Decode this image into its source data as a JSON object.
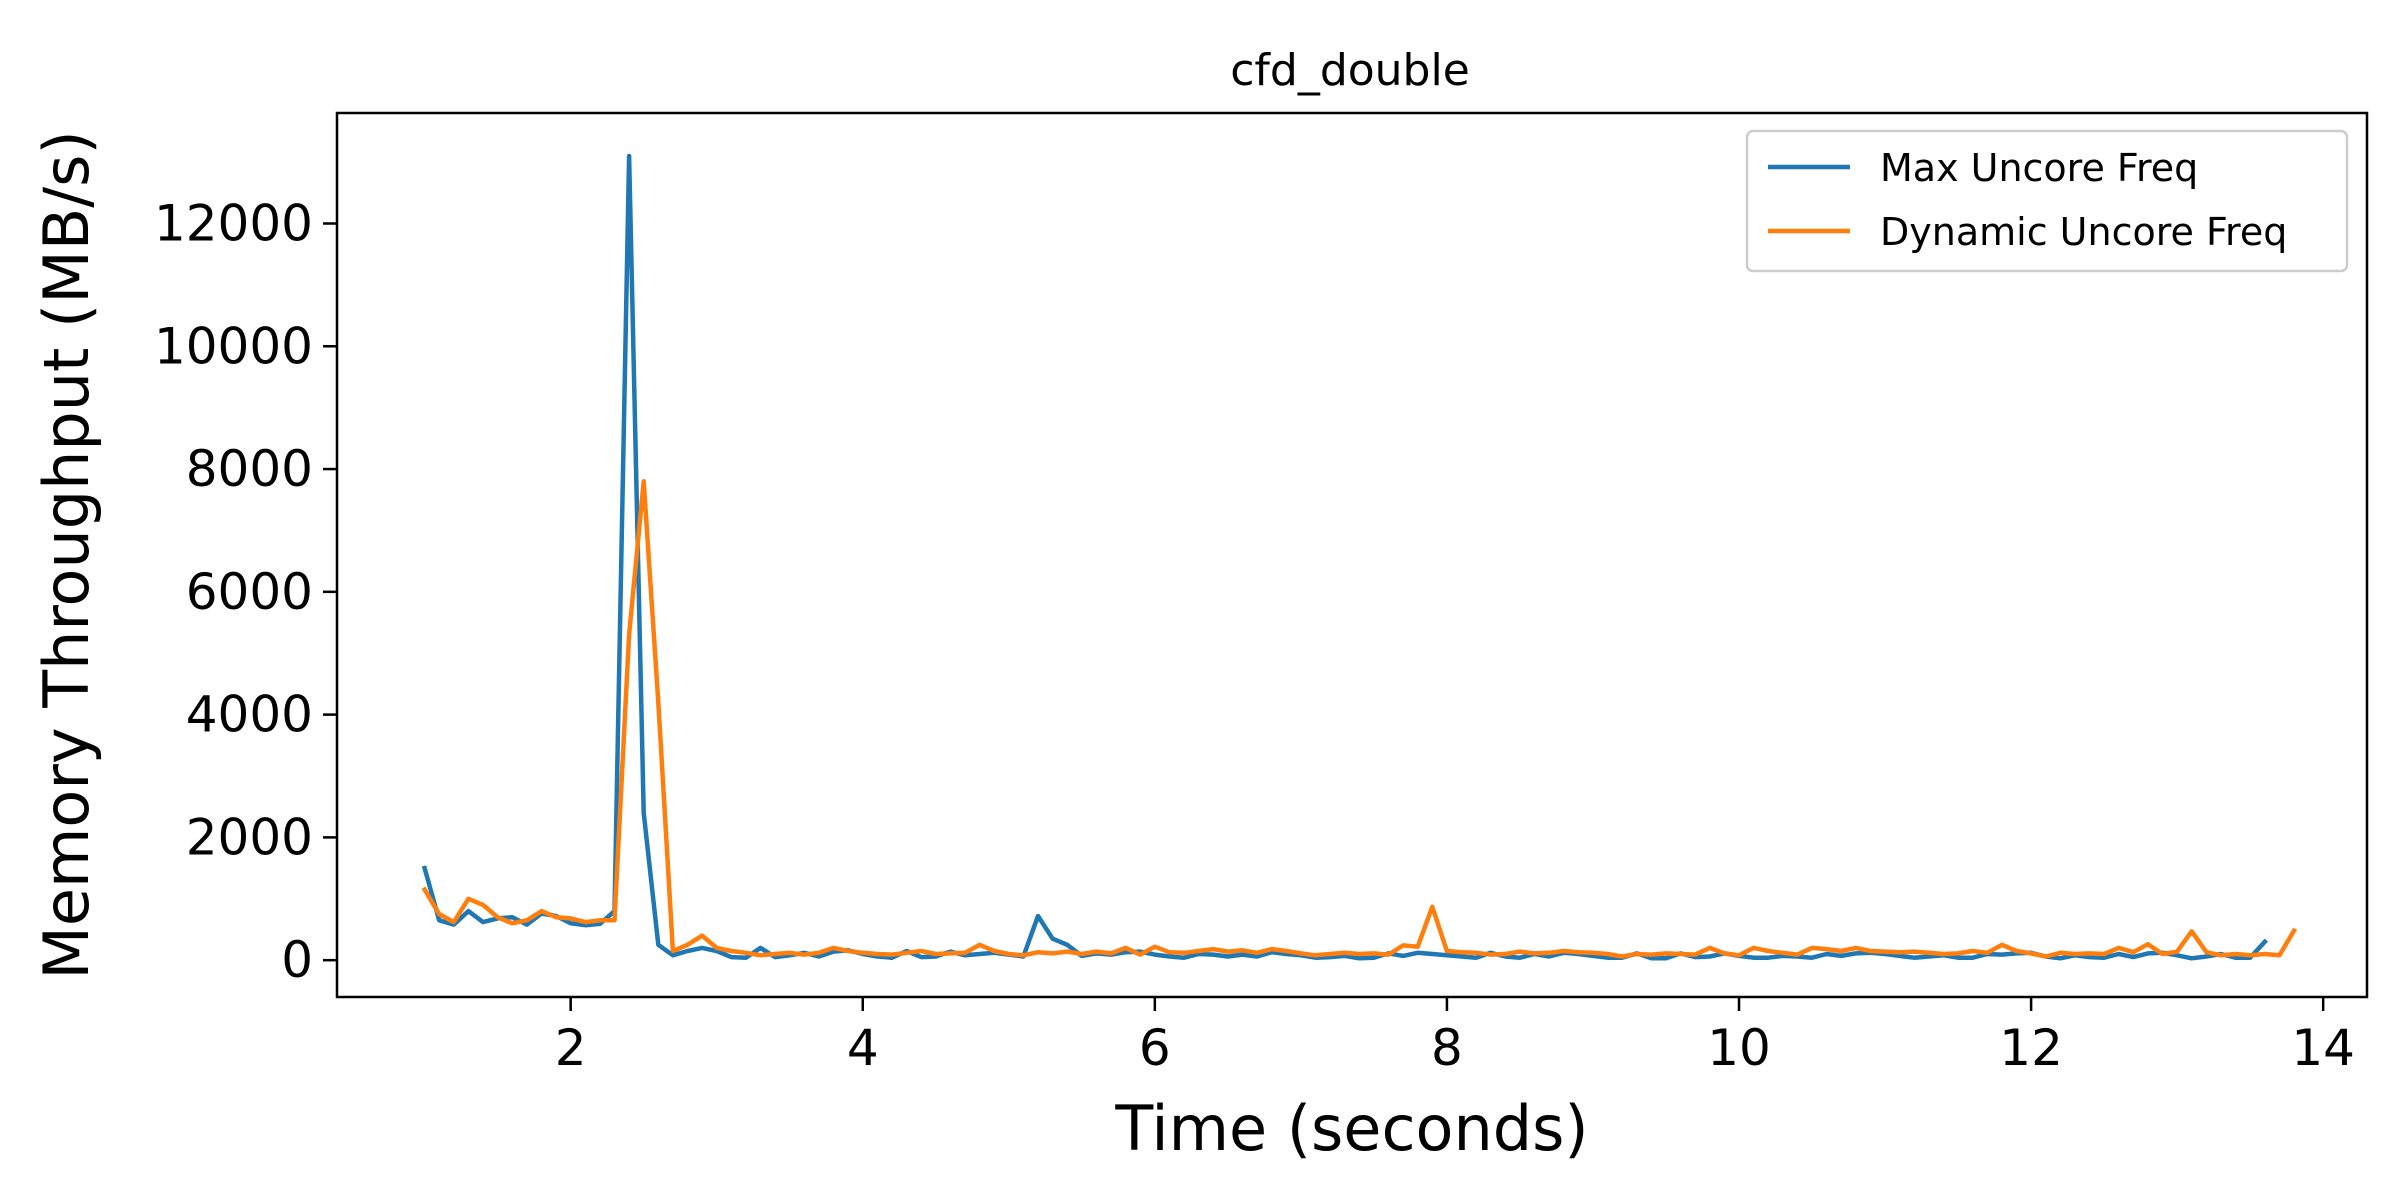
{
  "chart_data": {
    "type": "line",
    "title": "cfd_double",
    "xlabel": "Time (seconds)",
    "ylabel": "Memory Throughput (MB/s)",
    "xlim": [
      0.4,
      14.3
    ],
    "ylim": [
      -600,
      13800
    ],
    "xticks": [
      2,
      4,
      6,
      8,
      10,
      12,
      14
    ],
    "yticks": [
      0,
      2000,
      4000,
      6000,
      8000,
      10000,
      12000
    ],
    "grid": false,
    "legend_position": "top-right",
    "series": [
      {
        "name": "Max Uncore Freq",
        "color": "#1f77b4",
        "x": [
          1.0,
          1.1,
          1.2,
          1.3,
          1.4,
          1.5,
          1.6,
          1.7,
          1.8,
          1.9,
          2.0,
          2.1,
          2.2,
          2.3,
          2.4,
          2.5,
          2.6,
          2.7,
          2.8,
          2.9,
          3.0,
          3.1,
          3.2,
          3.3,
          3.4,
          3.5,
          3.6,
          3.7,
          3.8,
          3.9,
          4.0,
          4.1,
          4.2,
          4.3,
          4.4,
          4.5,
          4.6,
          4.7,
          4.8,
          4.9,
          5.0,
          5.1,
          5.2,
          5.3,
          5.4,
          5.5,
          5.6,
          5.7,
          5.8,
          5.9,
          6.0,
          6.1,
          6.2,
          6.3,
          6.4,
          6.5,
          6.6,
          6.7,
          6.8,
          6.9,
          7.0,
          7.1,
          7.2,
          7.3,
          7.4,
          7.5,
          7.6,
          7.7,
          7.8,
          7.9,
          8.0,
          8.1,
          8.2,
          8.3,
          8.4,
          8.5,
          8.6,
          8.7,
          8.8,
          8.9,
          9.0,
          9.1,
          9.2,
          9.3,
          9.4,
          9.5,
          9.6,
          9.7,
          9.8,
          9.9,
          10.0,
          10.1,
          10.2,
          10.3,
          10.4,
          10.5,
          10.6,
          10.7,
          10.8,
          10.9,
          11.0,
          11.1,
          11.2,
          11.3,
          11.4,
          11.5,
          11.6,
          11.7,
          11.8,
          11.9,
          12.0,
          12.1,
          12.2,
          12.3,
          12.4,
          12.5,
          12.6,
          12.7,
          12.8,
          12.9,
          13.0,
          13.1,
          13.2,
          13.3,
          13.4,
          13.5,
          13.6
        ],
        "y": [
          1500,
          650,
          580,
          800,
          620,
          680,
          700,
          580,
          760,
          720,
          600,
          570,
          590,
          800,
          13100,
          2400,
          250,
          80,
          150,
          200,
          150,
          50,
          40,
          200,
          50,
          80,
          120,
          60,
          140,
          160,
          100,
          60,
          40,
          150,
          50,
          60,
          140,
          80,
          100,
          120,
          90,
          60,
          720,
          350,
          250,
          70,
          110,
          90,
          130,
          140,
          90,
          60,
          40,
          100,
          90,
          60,
          90,
          60,
          130,
          100,
          80,
          40,
          50,
          70,
          30,
          40,
          110,
          70,
          120,
          100,
          80,
          60,
          40,
          120,
          60,
          40,
          100,
          60,
          120,
          100,
          70,
          40,
          40,
          110,
          30,
          30,
          110,
          50,
          60,
          110,
          70,
          40,
          40,
          70,
          60,
          40,
          100,
          70,
          110,
          120,
          100,
          70,
          40,
          60,
          80,
          40,
          40,
          100,
          90,
          110,
          120,
          60,
          30,
          80,
          50,
          40,
          100,
          50,
          110,
          120,
          80,
          30,
          60,
          100,
          40,
          40,
          300
        ]
      },
      {
        "name": "Dynamic Uncore Freq",
        "color": "#ff7f0e",
        "x": [
          1.0,
          1.1,
          1.2,
          1.3,
          1.4,
          1.5,
          1.6,
          1.7,
          1.8,
          1.9,
          2.0,
          2.1,
          2.2,
          2.3,
          2.4,
          2.5,
          2.6,
          2.7,
          2.8,
          2.9,
          3.0,
          3.1,
          3.2,
          3.3,
          3.4,
          3.5,
          3.6,
          3.7,
          3.8,
          3.9,
          4.0,
          4.1,
          4.2,
          4.3,
          4.4,
          4.5,
          4.6,
          4.7,
          4.8,
          4.9,
          5.0,
          5.1,
          5.2,
          5.3,
          5.4,
          5.5,
          5.6,
          5.7,
          5.8,
          5.9,
          6.0,
          6.1,
          6.2,
          6.3,
          6.4,
          6.5,
          6.6,
          6.7,
          6.8,
          6.9,
          7.0,
          7.1,
          7.2,
          7.3,
          7.4,
          7.5,
          7.6,
          7.7,
          7.8,
          7.9,
          8.0,
          8.1,
          8.2,
          8.3,
          8.4,
          8.5,
          8.6,
          8.7,
          8.8,
          8.9,
          9.0,
          9.1,
          9.2,
          9.3,
          9.4,
          9.5,
          9.6,
          9.7,
          9.8,
          9.9,
          10.0,
          10.1,
          10.2,
          10.3,
          10.4,
          10.5,
          10.6,
          10.7,
          10.8,
          10.9,
          11.0,
          11.1,
          11.2,
          11.3,
          11.4,
          11.5,
          11.6,
          11.7,
          11.8,
          11.9,
          12.0,
          12.1,
          12.2,
          12.3,
          12.4,
          12.5,
          12.6,
          12.7,
          12.8,
          12.9,
          13.0,
          13.1,
          13.2,
          13.3,
          13.4,
          13.5,
          13.6,
          13.7,
          13.8
        ],
        "y": [
          1150,
          750,
          620,
          1000,
          900,
          700,
          600,
          650,
          800,
          700,
          680,
          620,
          650,
          650,
          5300,
          7800,
          4200,
          150,
          250,
          400,
          200,
          150,
          120,
          80,
          100,
          120,
          90,
          120,
          200,
          150,
          120,
          100,
          90,
          120,
          150,
          100,
          110,
          120,
          250,
          150,
          100,
          80,
          130,
          110,
          140,
          100,
          140,
          110,
          200,
          90,
          220,
          130,
          120,
          150,
          180,
          140,
          160,
          120,
          180,
          150,
          110,
          80,
          100,
          120,
          100,
          110,
          90,
          240,
          220,
          870,
          150,
          130,
          120,
          90,
          100,
          140,
          110,
          120,
          150,
          130,
          120,
          100,
          60,
          100,
          90,
          110,
          100,
          90,
          200,
          110,
          80,
          200,
          150,
          120,
          90,
          200,
          180,
          150,
          200,
          150,
          140,
          130,
          140,
          120,
          100,
          110,
          150,
          120,
          250,
          150,
          110,
          60,
          120,
          100,
          110,
          100,
          200,
          130,
          260,
          100,
          140,
          470,
          130,
          80,
          100,
          80,
          100,
          80,
          480
        ]
      }
    ]
  }
}
